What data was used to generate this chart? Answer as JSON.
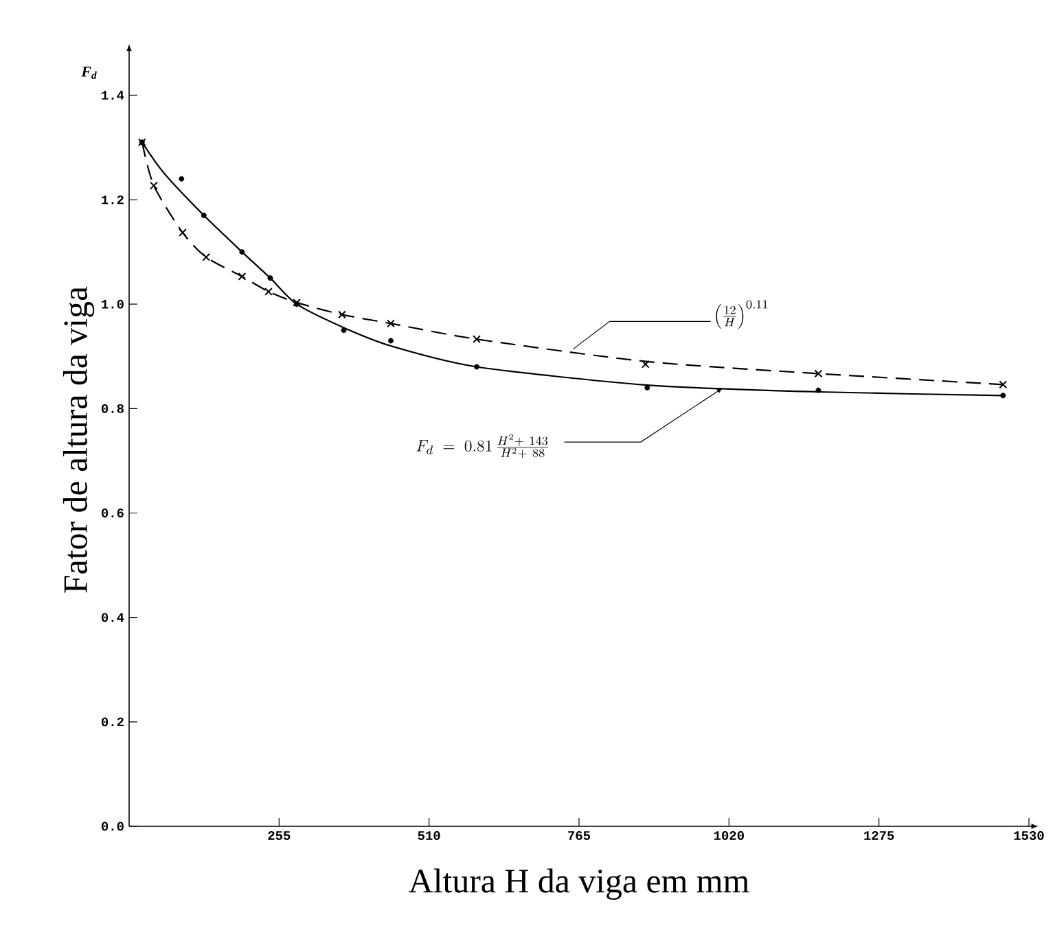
{
  "chart_data": {
    "type": "scatter",
    "xlabel": "Altura H da viga em mm",
    "ylabel": "Fator de altura da viga",
    "xlim": [
      0,
      1530
    ],
    "ylim": [
      0,
      1.48
    ],
    "xticks": [
      255,
      510,
      765,
      1020,
      1275,
      1530
    ],
    "yticks": [
      {
        "value": 0,
        "label": "0.0"
      },
      {
        "value": 0.2,
        "label": "0.2"
      },
      {
        "value": 0.4,
        "label": "0.4"
      },
      {
        "value": 0.6,
        "label": "0.6"
      },
      {
        "value": 0.8,
        "label": "0.8"
      },
      {
        "value": 1.0,
        "label": "1.0"
      },
      {
        "value": 1.2,
        "label": "1.2"
      },
      {
        "value": 1.4,
        "label": "1.4"
      }
    ],
    "series": [
      {
        "marker": "circle",
        "color": "#000000",
        "x": [
          22,
          89,
          127,
          192,
          240,
          285,
          365,
          445,
          591,
          881,
          1172,
          1486
        ],
        "values": [
          1.31,
          1.24,
          1.17,
          1.1,
          1.05,
          1.0,
          0.95,
          0.93,
          0.88,
          0.84,
          0.835,
          0.825
        ]
      },
      {
        "marker": "cross",
        "color": "#000000",
        "x": [
          22,
          42,
          91,
          131,
          192,
          237,
          285,
          362,
          445,
          591,
          878,
          1172,
          1486
        ],
        "values": [
          1.31,
          1.227,
          1.137,
          1.09,
          1.053,
          1.024,
          1.003,
          0.98,
          0.963,
          0.933,
          0.885,
          0.867,
          0.846
        ]
      },
      {
        "type": "line",
        "line_style": "solid",
        "color": "#000000",
        "x": [
          22,
          60,
          127,
          192,
          240,
          285,
          365,
          445,
          591,
          881,
          1172,
          1486
        ],
        "values": [
          1.31,
          1.25,
          1.17,
          1.1,
          1.05,
          1.0,
          0.955,
          0.92,
          0.88,
          0.845,
          0.832,
          0.825
        ]
      },
      {
        "type": "line",
        "line_style": "dashed",
        "color": "#000000",
        "x": [
          22,
          42,
          91,
          131,
          192,
          237,
          285,
          362,
          445,
          591,
          881,
          1172,
          1486
        ],
        "values": [
          1.31,
          1.227,
          1.137,
          1.09,
          1.053,
          1.024,
          1.003,
          0.98,
          0.963,
          0.933,
          0.89,
          0.867,
          0.846
        ]
      }
    ],
    "annotations": [
      "F$_{d}$",
      {
        "text": "F_d \\;=\\; 0.81\\,\\frac{H^2 +\\ 143}{H^2 +\\ 88}",
        "x": 1010,
        "y": 0.84
      },
      {
        "text": "\\left(\\frac{12}{H}\\right)^{0.11}",
        "x": 755,
        "y": 0.914
      }
    ]
  }
}
